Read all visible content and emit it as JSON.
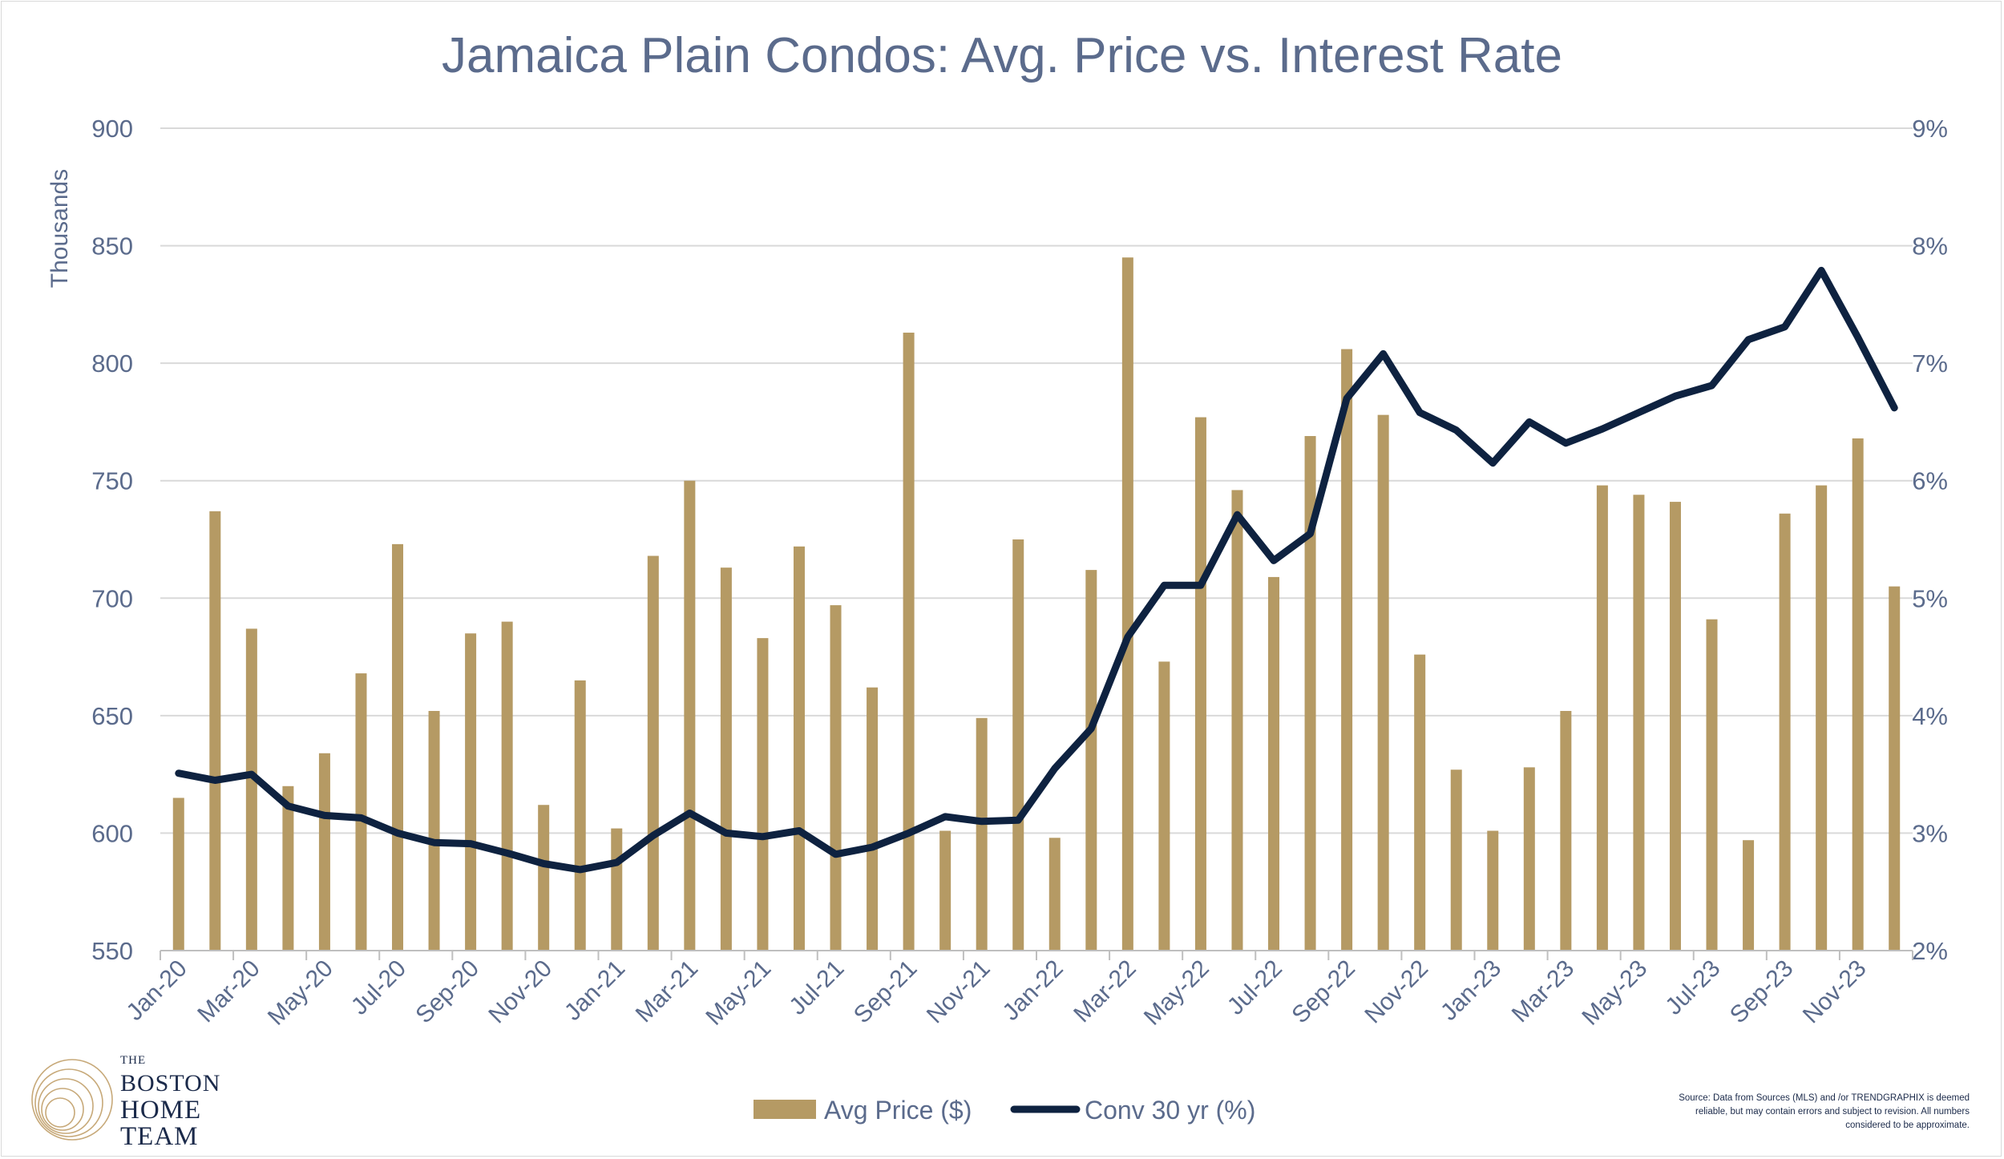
{
  "chart_data": {
    "type": "bar+line",
    "title": "Jamaica Plain Condos:  Avg. Price vs. Interest Rate",
    "y_left": {
      "label": "Thousands",
      "range": [
        550,
        900
      ],
      "ticks": [
        550,
        600,
        650,
        700,
        750,
        800,
        850,
        900
      ],
      "tick_labels": [
        "550",
        "600",
        "650",
        "700",
        "750",
        "800",
        "850",
        "900"
      ]
    },
    "y_right": {
      "range": [
        2,
        9
      ],
      "ticks": [
        2,
        3,
        4,
        5,
        6,
        7,
        8,
        9
      ],
      "tick_labels": [
        "2%",
        "3%",
        "4%",
        "5%",
        "6%",
        "7%",
        "8%",
        "9%"
      ]
    },
    "x_tick_labels": [
      "Jan-20",
      "Mar-20",
      "May-20",
      "Jul-20",
      "Sep-20",
      "Nov-20",
      "Jan-21",
      "Mar-21",
      "May-21",
      "Jul-21",
      "Sep-21",
      "Nov-21",
      "Jan-22",
      "Mar-22",
      "May-22",
      "Jul-22",
      "Sep-22",
      "Nov-22",
      "Jan-23",
      "Mar-23",
      "May-23",
      "Jul-23",
      "Sep-23",
      "Nov-23"
    ],
    "months": [
      "Jan-20",
      "Feb-20",
      "Mar-20",
      "Apr-20",
      "May-20",
      "Jun-20",
      "Jul-20",
      "Aug-20",
      "Sep-20",
      "Oct-20",
      "Nov-20",
      "Dec-20",
      "Jan-21",
      "Feb-21",
      "Mar-21",
      "Apr-21",
      "May-21",
      "Jun-21",
      "Jul-21",
      "Aug-21",
      "Sep-21",
      "Oct-21",
      "Nov-21",
      "Dec-21",
      "Jan-22",
      "Feb-22",
      "Mar-22",
      "Apr-22",
      "May-22",
      "Jun-22",
      "Jul-22",
      "Aug-22",
      "Sep-22",
      "Oct-22",
      "Nov-22",
      "Dec-22",
      "Jan-23",
      "Feb-23",
      "Mar-23",
      "Apr-23",
      "May-23",
      "Jun-23",
      "Jul-23",
      "Aug-23",
      "Sep-23",
      "Oct-23",
      "Nov-23",
      "Dec-23"
    ],
    "series": [
      {
        "name": "Avg Price ($)",
        "type": "bar",
        "axis": "left",
        "color": "#b59a64",
        "values": [
          615,
          737,
          687,
          620,
          634,
          668,
          723,
          652,
          685,
          690,
          612,
          665,
          602,
          718,
          750,
          713,
          683,
          722,
          697,
          662,
          813,
          601,
          649,
          725,
          598,
          712,
          845,
          673,
          777,
          746,
          709,
          769,
          806,
          778,
          676,
          627,
          601,
          628,
          652,
          748,
          744,
          741,
          691,
          597,
          736,
          748,
          768,
          705
        ]
      },
      {
        "name": "Conv 30 yr (%)",
        "type": "line",
        "axis": "right",
        "color": "#0e2240",
        "values": [
          3.51,
          3.45,
          3.5,
          3.23,
          3.15,
          3.13,
          3.0,
          2.92,
          2.91,
          2.83,
          2.74,
          2.69,
          2.75,
          2.98,
          3.17,
          3.0,
          2.97,
          3.02,
          2.82,
          2.88,
          3.0,
          3.14,
          3.1,
          3.11,
          3.55,
          3.89,
          4.67,
          5.11,
          5.11,
          5.71,
          5.32,
          5.55,
          6.7,
          7.08,
          6.58,
          6.43,
          6.15,
          6.5,
          6.32,
          6.44,
          6.58,
          6.72,
          6.81,
          7.2,
          7.31,
          7.79,
          7.22,
          6.62
        ]
      }
    ],
    "legend": {
      "position": "bottom",
      "entries": [
        "Avg Price ($)",
        "Conv 30 yr (%)"
      ]
    },
    "grid": true
  },
  "logo": {
    "the": "THE",
    "boston": "BOSTON",
    "home": "HOME",
    "team": "TEAM"
  },
  "source_lines": [
    "Source:  Data from Sources (MLS) and /or TRENDGRAPHIX is deemed",
    "reliable, but may contain errors and subject to revision.  All numbers",
    "considered to be approximate."
  ],
  "colors": {
    "text": "#5b6b8c",
    "grid": "#d9d9d9",
    "bar": "#b59a64",
    "line": "#0e2240"
  }
}
